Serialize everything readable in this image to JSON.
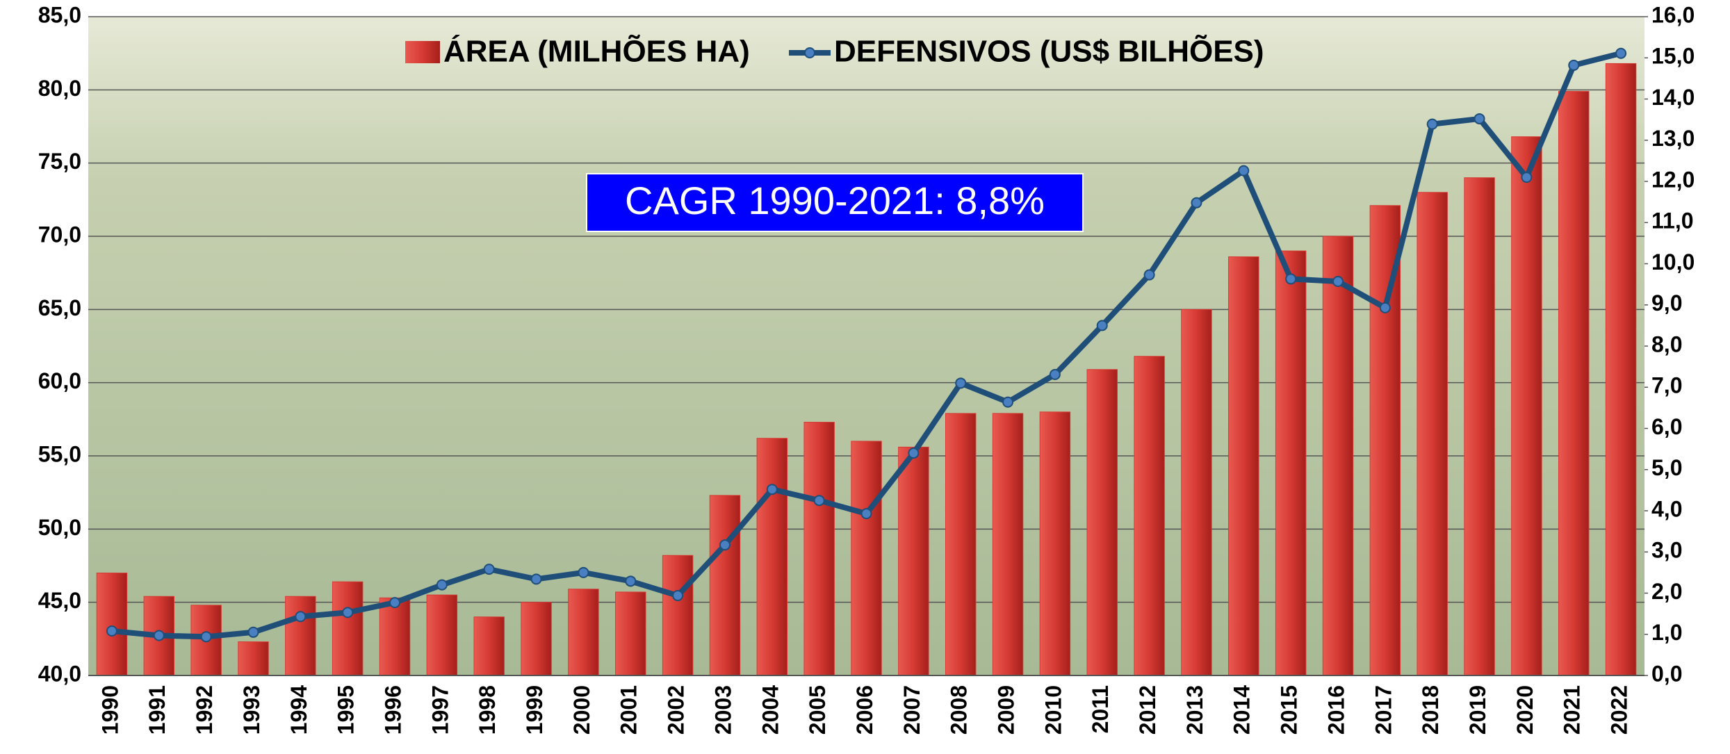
{
  "chart_data": {
    "type": "bar",
    "annotation": "CAGR 1990-2021: 8,8%",
    "categories": [
      "1990",
      "1991",
      "1992",
      "1993",
      "1994",
      "1995",
      "1996",
      "1997",
      "1998",
      "1999",
      "2000",
      "2001",
      "2002",
      "2003",
      "2004",
      "2005",
      "2006",
      "2007",
      "2008",
      "2009",
      "2010",
      "2011",
      "2012",
      "2013",
      "2014",
      "2015",
      "2016",
      "2017",
      "2018",
      "2019",
      "2020",
      "2021",
      "2022"
    ],
    "series": [
      {
        "name": "ÁREA (MILHÕES HA)",
        "type": "bar",
        "axis": "y",
        "color": "#d63a33",
        "values": [
          47.0,
          45.4,
          44.8,
          42.3,
          45.4,
          46.4,
          45.3,
          45.5,
          44.0,
          45.0,
          45.9,
          45.7,
          48.2,
          52.3,
          56.2,
          57.3,
          56.0,
          55.6,
          57.9,
          57.9,
          58.0,
          60.9,
          61.8,
          65.0,
          68.6,
          69.0,
          70.0,
          72.1,
          73.0,
          74.0,
          76.8,
          79.9,
          81.8
        ]
      },
      {
        "name": "DEFENSIVOS (US$ BILHÕES)",
        "type": "line",
        "axis": "y2",
        "color": "#1f4e79",
        "values": [
          1.08,
          0.97,
          0.94,
          1.05,
          1.43,
          1.53,
          1.77,
          2.2,
          2.58,
          2.34,
          2.5,
          2.29,
          1.94,
          3.17,
          4.52,
          4.25,
          3.93,
          5.4,
          7.1,
          6.64,
          7.31,
          8.5,
          9.73,
          11.48,
          12.26,
          9.63,
          9.57,
          8.93,
          13.39,
          13.52,
          12.1,
          14.82,
          15.11
        ]
      }
    ],
    "ylim": [
      40,
      85
    ],
    "yticks": [
      {
        "value": 40,
        "label": "40,0"
      },
      {
        "value": 45,
        "label": "45,0"
      },
      {
        "value": 50,
        "label": "50,0"
      },
      {
        "value": 55,
        "label": "55,0"
      },
      {
        "value": 60,
        "label": "60,0"
      },
      {
        "value": 65,
        "label": "65,0"
      },
      {
        "value": 70,
        "label": "70,0"
      },
      {
        "value": 75,
        "label": "75,0"
      },
      {
        "value": 80,
        "label": "80,0"
      },
      {
        "value": 85,
        "label": "85,0"
      }
    ],
    "y2lim": [
      0,
      16
    ],
    "y2ticks": [
      {
        "value": 0,
        "label": "0,0"
      },
      {
        "value": 1,
        "label": "1,0"
      },
      {
        "value": 2,
        "label": "2,0"
      },
      {
        "value": 3,
        "label": "3,0"
      },
      {
        "value": 4,
        "label": "4,0"
      },
      {
        "value": 5,
        "label": "5,0"
      },
      {
        "value": 6,
        "label": "6,0"
      },
      {
        "value": 7,
        "label": "7,0"
      },
      {
        "value": 8,
        "label": "8,0"
      },
      {
        "value": 9,
        "label": "9,0"
      },
      {
        "value": 10,
        "label": "10,0"
      },
      {
        "value": 11,
        "label": "11,0"
      },
      {
        "value": 12,
        "label": "12,0"
      },
      {
        "value": 13,
        "label": "13,0"
      },
      {
        "value": 14,
        "label": "14,0"
      },
      {
        "value": 15,
        "label": "15,0"
      },
      {
        "value": 16,
        "label": "16,0"
      }
    ],
    "grid": true
  }
}
